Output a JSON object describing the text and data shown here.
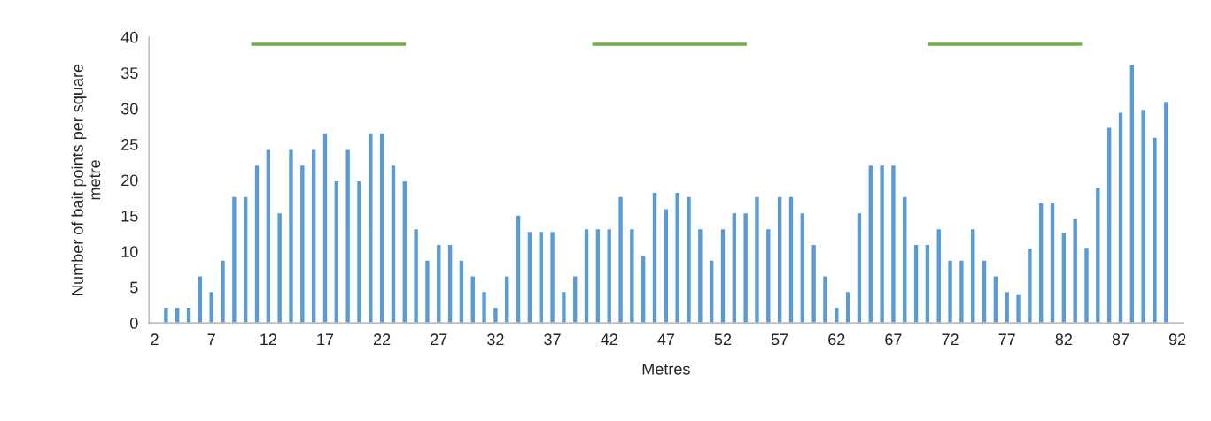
{
  "chart_data": {
    "type": "bar",
    "xlabel": "Metres",
    "ylabel": "Number of bait points per square\nmetre",
    "x": [
      3,
      4,
      5,
      6,
      7,
      8,
      9,
      10,
      11,
      12,
      13,
      14,
      15,
      16,
      17,
      18,
      19,
      20,
      21,
      22,
      23,
      24,
      25,
      26,
      27,
      28,
      29,
      30,
      31,
      32,
      33,
      34,
      35,
      36,
      37,
      38,
      39,
      40,
      41,
      42,
      43,
      44,
      45,
      46,
      47,
      48,
      49,
      50,
      51,
      52,
      53,
      54,
      55,
      56,
      57,
      58,
      59,
      60,
      61,
      62,
      63,
      64,
      65,
      66,
      67,
      68,
      69,
      70,
      71,
      72,
      73,
      74,
      75,
      76,
      77,
      78,
      79,
      80,
      81,
      82,
      83,
      84,
      85,
      86,
      87,
      88,
      89,
      90,
      91
    ],
    "series": [
      {
        "color": "#5b9bd5",
        "values": [
          2.2,
          2.2,
          2.2,
          6.6,
          4.4,
          8.8,
          17.7,
          17.7,
          22.1,
          24.3,
          15.4,
          24.3,
          22.1,
          24.3,
          26.6,
          19.9,
          24.3,
          19.9,
          26.6,
          26.6,
          22.1,
          19.9,
          13.2,
          8.8,
          11.0,
          11.0,
          8.8,
          6.6,
          4.4,
          2.2,
          6.6,
          15.1,
          12.8,
          12.8,
          12.8,
          4.4,
          6.6,
          13.2,
          13.2,
          13.2,
          17.7,
          13.2,
          9.4,
          18.3,
          16.0,
          18.3,
          17.7,
          13.2,
          8.8,
          13.2,
          15.4,
          15.4,
          17.7,
          13.2,
          17.7,
          17.7,
          15.4,
          11.0,
          6.6,
          2.2,
          4.4,
          15.4,
          22.1,
          22.1,
          22.1,
          17.7,
          11.0,
          11.0,
          13.2,
          8.8,
          8.8,
          13.2,
          8.8,
          6.6,
          4.4,
          4.1,
          10.5,
          16.8,
          16.8,
          12.6,
          14.6,
          10.6,
          19.0,
          27.4,
          29.5,
          36.1,
          29.9,
          26.0,
          31.0
        ]
      },
      {
        "type": "line",
        "color": "#70ad47",
        "x": [
          10.5,
          24.1
        ],
        "values": [
          39,
          39
        ]
      },
      {
        "type": "line",
        "color": "#70ad47",
        "x": [
          40.5,
          54.1
        ],
        "values": [
          39,
          39
        ]
      },
      {
        "type": "line",
        "color": "#70ad47",
        "x": [
          70.0,
          83.6
        ],
        "values": [
          39,
          39
        ]
      }
    ],
    "xlim": [
      1.5,
      92.5
    ],
    "xticks": [
      2,
      7,
      12,
      17,
      22,
      27,
      32,
      37,
      42,
      47,
      52,
      57,
      62,
      67,
      72,
      77,
      82,
      87,
      92
    ],
    "ylim": [
      0,
      40
    ],
    "yticks": [
      0,
      5,
      10,
      15,
      20,
      25,
      30,
      35,
      40
    ],
    "grid": false,
    "legend": false
  }
}
